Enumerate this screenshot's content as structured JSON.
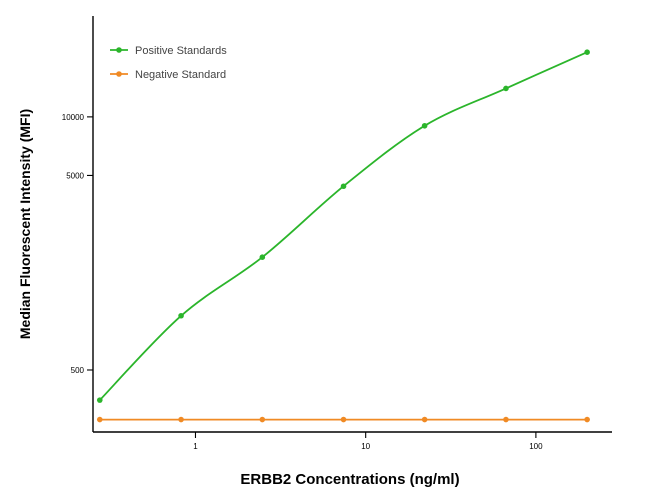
{
  "chart_data": {
    "type": "line",
    "title": "",
    "xlabel": "ERBB2 Concentrations (ng/ml)",
    "ylabel": "Median  Fluorescent Intensity  (MFI)",
    "x_scale": "log",
    "y_scale": "log",
    "xlim": [
      0.25,
      280
    ],
    "ylim": [
      240,
      33000
    ],
    "x_ticks": [
      1,
      10,
      100
    ],
    "x_tick_labels": [
      "1",
      "10",
      "100"
    ],
    "y_ticks": [
      500,
      5000,
      10000
    ],
    "y_tick_labels": [
      "500",
      "5000",
      "10000"
    ],
    "grid": false,
    "legend_position": "top-left",
    "series": [
      {
        "name": "Positive Standards",
        "color": "#2bb52b",
        "fit": "smooth",
        "x": [
          0.274,
          0.823,
          2.47,
          7.41,
          22.2,
          66.7,
          200
        ],
        "y": [
          350,
          950,
          1900,
          4400,
          9000,
          14000,
          21500
        ]
      },
      {
        "name": "Negative Standard",
        "color": "#f08a24",
        "fit": "linear",
        "x": [
          0.274,
          0.823,
          2.47,
          7.41,
          22.2,
          66.7,
          200
        ],
        "y": [
          278,
          278,
          278,
          278,
          278,
          278,
          278
        ]
      }
    ]
  }
}
